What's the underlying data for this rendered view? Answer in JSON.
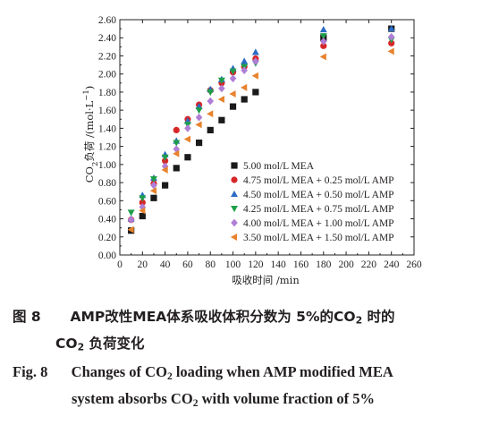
{
  "chart_data": {
    "type": "scatter",
    "xlabel": "吸收时间 /min",
    "ylabel": {
      "pre": "CO",
      "sub": "2",
      "mid": "负荷 /(mol·L",
      "sup": "−1",
      "post": ")"
    },
    "xlim": [
      0,
      260
    ],
    "ylim": [
      0,
      2.6
    ],
    "xticks": [
      "0",
      "20",
      "40",
      "60",
      "80",
      "100",
      "120",
      "140",
      "160",
      "180",
      "200",
      "220",
      "240",
      "260"
    ],
    "yticks": [
      "0.00",
      "0.20",
      "0.40",
      "0.60",
      "0.80",
      "1.00",
      "1.20",
      "1.40",
      "1.60",
      "1.80",
      "2.00",
      "2.20",
      "2.40",
      "2.60"
    ],
    "grid": false,
    "legend_position": "bottom-right",
    "series": [
      {
        "name": "5.00 mol/L MEA",
        "marker": "square",
        "color": "#1a1a1a",
        "x": [
          10,
          20,
          30,
          40,
          50,
          60,
          70,
          80,
          90,
          100,
          110,
          120,
          180,
          240
        ],
        "y": [
          0.27,
          0.43,
          0.63,
          0.77,
          0.96,
          1.08,
          1.24,
          1.38,
          1.49,
          1.64,
          1.72,
          1.8,
          2.4,
          2.5
        ]
      },
      {
        "name": "4.75 mol/L MEA + 0.25 mol/L AMP",
        "marker": "circle",
        "color": "#d62728",
        "x": [
          10,
          20,
          30,
          40,
          50,
          60,
          70,
          80,
          90,
          100,
          110,
          120,
          180,
          240
        ],
        "y": [
          0.39,
          0.58,
          0.79,
          1.04,
          1.38,
          1.5,
          1.66,
          1.82,
          1.9,
          2.02,
          2.08,
          2.17,
          2.31,
          2.34
        ]
      },
      {
        "name": "4.50 mol/L MEA + 0.50 mol/L AMP",
        "marker": "triangle-up",
        "color": "#2b6cc4",
        "x": [
          10,
          20,
          30,
          40,
          50,
          60,
          70,
          80,
          90,
          100,
          110,
          120,
          180,
          240
        ],
        "y": [
          0.4,
          0.66,
          0.85,
          1.11,
          1.26,
          1.48,
          1.64,
          1.83,
          1.94,
          2.06,
          2.14,
          2.24,
          2.49,
          2.5
        ]
      },
      {
        "name": "4.25 mol/L MEA + 0.75 mol/L AMP",
        "marker": "triangle-down",
        "color": "#1f9e4a",
        "x": [
          10,
          20,
          30,
          40,
          50,
          60,
          70,
          80,
          90,
          100,
          110,
          120,
          180,
          240
        ],
        "y": [
          0.47,
          0.63,
          0.84,
          1.08,
          1.24,
          1.44,
          1.6,
          1.8,
          1.93,
          2.03,
          2.08,
          2.12,
          2.42,
          2.38
        ]
      },
      {
        "name": "4.00 mol/L MEA + 1.00 mol/L AMP",
        "marker": "diamond",
        "color": "#b07ed6",
        "x": [
          10,
          20,
          30,
          40,
          50,
          60,
          70,
          80,
          90,
          100,
          110,
          120,
          180,
          240
        ],
        "y": [
          0.39,
          0.53,
          0.77,
          0.98,
          1.17,
          1.4,
          1.52,
          1.7,
          1.84,
          1.95,
          2.04,
          2.14,
          2.36,
          2.41
        ]
      },
      {
        "name": "3.50 mol/L MEA + 1.50 mol/L AMP",
        "marker": "triangle-left",
        "color": "#e8822c",
        "x": [
          10,
          20,
          30,
          40,
          50,
          60,
          70,
          80,
          90,
          100,
          110,
          120,
          180,
          240
        ],
        "y": [
          0.28,
          0.49,
          0.71,
          0.94,
          1.12,
          1.28,
          1.44,
          1.56,
          1.72,
          1.78,
          1.85,
          1.98,
          2.19,
          2.25
        ]
      }
    ]
  },
  "caption": {
    "cn_label": "图 8",
    "cn_line1": "AMP改性MEA体系吸收体积分数为 5%的CO",
    "cn_line1_sub": "2",
    "cn_line1_post": " 时的",
    "cn_line2": "CO",
    "cn_line2_sub": "2",
    "cn_line2_post": " 负荷变化",
    "en_label": "Fig. 8",
    "en_line1": "Changes of CO",
    "en_line1_sub": "2",
    "en_line1_post": " loading when AMP modified MEA",
    "en_line2": "system absorbs CO",
    "en_line2_sub": "2",
    "en_line2_post": " with volume fraction of 5%"
  }
}
